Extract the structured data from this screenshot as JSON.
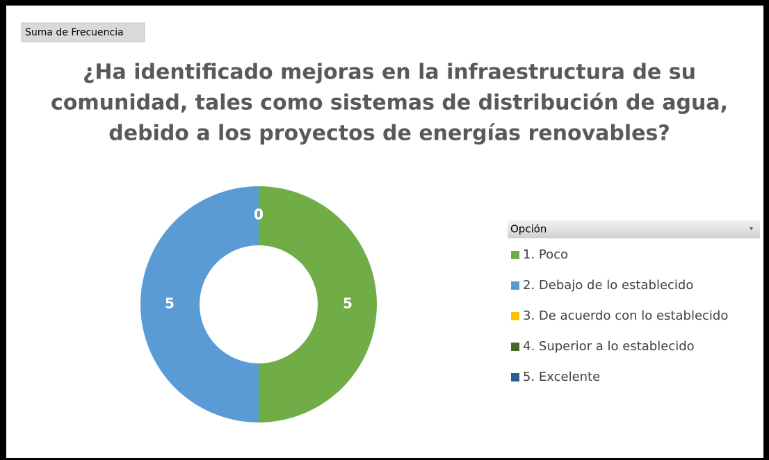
{
  "chart_data": {
    "type": "doughnut",
    "field_button": "Suma de Frecuencia",
    "title": [
      "¿Ha identificado mejoras en la infraestructura de su",
      "comunidad, tales como sistemas de distribución de agua,",
      "debido a los proyectos de energías renovables?"
    ],
    "legend_title": "Opción",
    "categories": [
      "1. Poco",
      "2. Debajo de lo establecido",
      "3. De acuerdo con lo establecido",
      "4. Superior a lo establecido",
      "5. Excelente"
    ],
    "values": [
      5,
      5,
      0,
      0,
      0
    ],
    "colors": [
      "#70ad47",
      "#5b9bd5",
      "#ffc000",
      "#43682b",
      "#255e91"
    ],
    "legend": "right"
  }
}
